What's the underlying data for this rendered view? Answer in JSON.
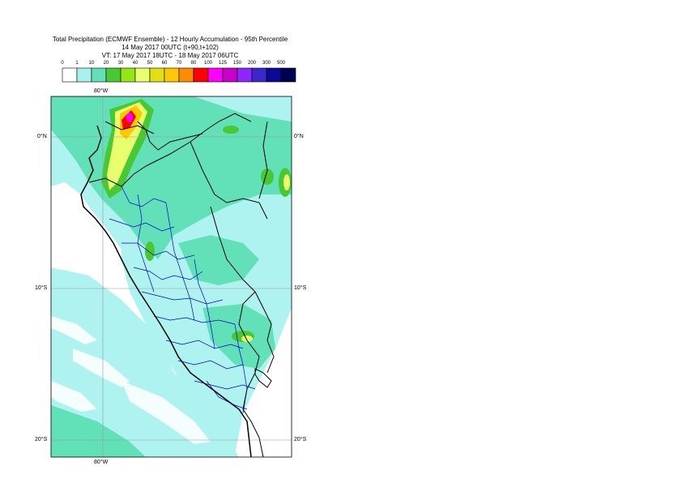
{
  "title": {
    "line1": "Total Precipitation (ECMWF Ensemble) - 12 Hourly Accumulation - 95th Percentile",
    "line2": "14 May 2017 00UTC (t+90,t+102)",
    "line3": "VT: 17 May 2017 18UTC - 18 May 2017 06UTC"
  },
  "legend": {
    "values": [
      "0",
      "1",
      "10",
      "20",
      "30",
      "40",
      "50",
      "60",
      "70",
      "80",
      "100",
      "125",
      "150",
      "200",
      "300",
      "500"
    ],
    "colors": [
      "#ffffff",
      "#a8f2ee",
      "#62e0b8",
      "#48c832",
      "#96e614",
      "#e8ff6e",
      "#e0e014",
      "#ffc800",
      "#ff8c00",
      "#ff0000",
      "#ff00ff",
      "#c800c8",
      "#8c28ff",
      "#3c28c8",
      "#0a0a96",
      "#000050"
    ]
  },
  "axes": {
    "lon_top": "80°W",
    "lon_bottom": "80°W",
    "lat_labels": [
      "0°N",
      "10°S",
      "20°S"
    ]
  },
  "colors": {
    "light": "#aef3ef",
    "medium": "#62e0b8",
    "green": "#48c832",
    "yellow": "#e8ff6e",
    "orange": "#ffc800",
    "red": "#ff0000",
    "magenta": "#ff00ff",
    "border": "#000000",
    "admin": "#0000cc",
    "grid": "#9a9a9a"
  }
}
